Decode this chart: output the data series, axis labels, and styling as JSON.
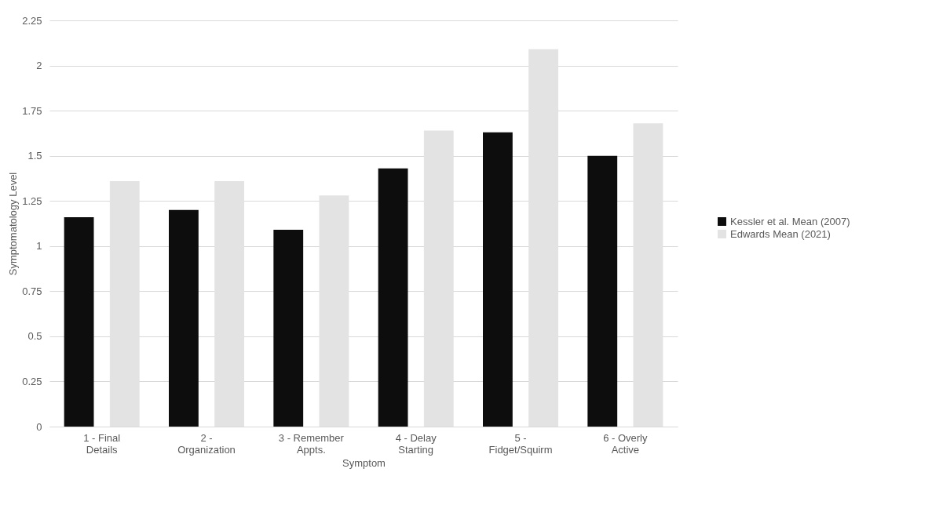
{
  "chart_data": {
    "type": "bar",
    "xlabel": "Symptom",
    "ylabel": "Symptomatology Level",
    "categories": [
      "1 - Final Details",
      "2 - Organization",
      "3 - Remember Appts.",
      "4 - Delay Starting",
      "5 - Fidget/Squirm",
      "6 - Overly Active"
    ],
    "series": [
      {
        "name": "Kessler et al. Mean (2007)",
        "color": "#0d0d0d",
        "values": [
          1.16,
          1.2,
          1.09,
          1.43,
          1.63,
          1.5
        ]
      },
      {
        "name": "Edwards Mean (2021)",
        "color": "#e3e3e3",
        "values": [
          1.36,
          1.36,
          1.28,
          1.64,
          2.09,
          1.68
        ]
      }
    ],
    "ylim": [
      0,
      2.25
    ],
    "yticks": [
      0,
      0.25,
      0.5,
      0.75,
      1,
      1.25,
      1.5,
      1.75,
      2,
      2.25
    ],
    "grid": "y",
    "legend": "right"
  }
}
